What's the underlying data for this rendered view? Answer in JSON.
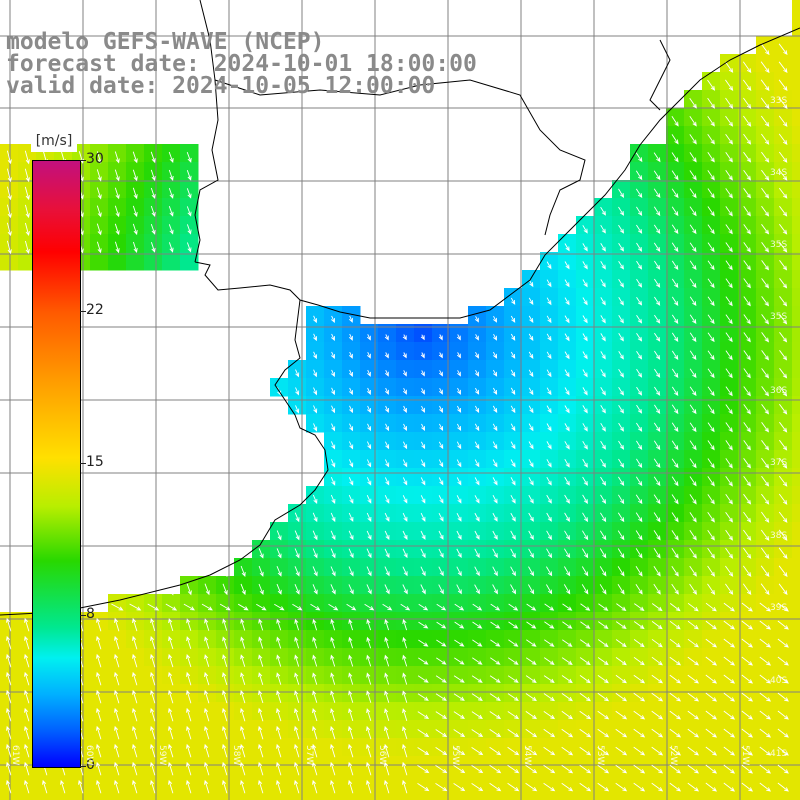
{
  "header": {
    "line1": "modelo GEFS-WAVE (NCEP)",
    "line2": "forecast date: 2024-10-01 18:00:00",
    "line3": "valid date: 2024-10-05 12:00:00"
  },
  "colorbar": {
    "unit": "[m/s]",
    "ticks": [
      "30",
      "22",
      "15",
      "8",
      "0"
    ],
    "tick_values": [
      30,
      22,
      15,
      8,
      0
    ],
    "range": [
      0,
      30
    ],
    "colors": [
      "#0000ff",
      "#0060ff",
      "#00b0ff",
      "#00f0f0",
      "#00e890",
      "#28d800",
      "#b8ee00",
      "#ffe000",
      "#ffa000",
      "#ff5a00",
      "#ff0000",
      "#e8103a",
      "#c2107e"
    ]
  },
  "axes": {
    "lat_labels": [
      "33S",
      "34S",
      "35S",
      "36S",
      "37S",
      "38S",
      "39S",
      "40S",
      "41S"
    ],
    "lon_labels": [
      "61W",
      "60W",
      "59W",
      "58W",
      "57W",
      "56W",
      "55W",
      "54W",
      "53W",
      "52W",
      "51W"
    ]
  },
  "map": {
    "variable": "wind speed with direction arrows",
    "land_color": "#ffffff",
    "grid_color": "#808080",
    "coast_color": "#000000"
  }
}
